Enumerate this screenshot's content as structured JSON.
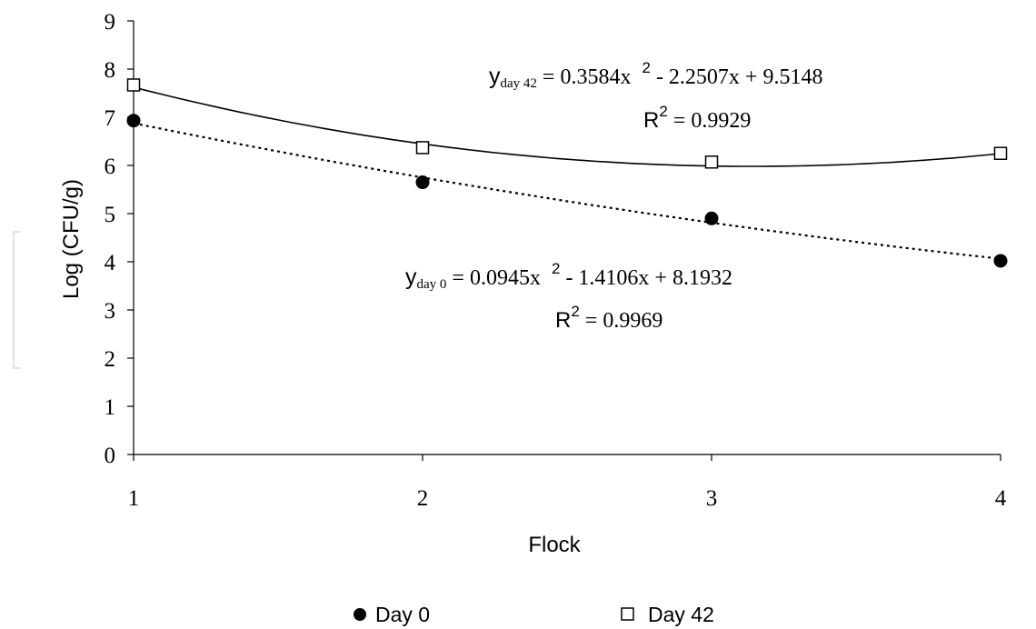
{
  "chart_data": {
    "type": "scatter",
    "xlabel": "Flock",
    "ylabel": "Log (CFU/g)",
    "xlim": [
      1,
      4
    ],
    "ylim": [
      0,
      9
    ],
    "x_ticks": [
      "1",
      "2",
      "3",
      "4"
    ],
    "y_ticks": [
      "0",
      "1",
      "2",
      "3",
      "4",
      "5",
      "6",
      "7",
      "8",
      "9"
    ],
    "grid": false,
    "legend_position": "bottom",
    "series": [
      {
        "name": "Day 0",
        "marker": "filled-circle",
        "trendline_style": "dotted",
        "color": "#000000",
        "x": [
          1,
          2,
          3,
          4
        ],
        "y": [
          6.93,
          5.65,
          4.9,
          4.02
        ],
        "fit": {
          "a": 0.0945,
          "b": -1.4106,
          "c": 8.1932
        }
      },
      {
        "name": "Day 42",
        "marker": "open-square",
        "trendline_style": "solid",
        "color": "#000000",
        "x": [
          1,
          2,
          3,
          4
        ],
        "y": [
          7.67,
          6.37,
          6.07,
          6.25
        ],
        "fit": {
          "a": 0.3584,
          "b": -2.2507,
          "c": 9.5148
        }
      }
    ],
    "annotations": {
      "day42_eq_y": "y",
      "day42_eq_sub": "day 42",
      "day42_eq_part1": " = 0.3584x",
      "day42_eq_sup": "2",
      "day42_eq_part2": " - 2.2507x + 9.5148",
      "day42_r2_label": "R",
      "day42_r2_sup": "2",
      "day42_r2_value": " = 0.9929",
      "day0_eq_y": "y",
      "day0_eq_sub": "day 0",
      "day0_eq_part1": " = 0.0945x",
      "day0_eq_sup": "2",
      "day0_eq_part2": " - 1.4106x + 8.1932",
      "day0_r2_label": "R",
      "day0_r2_sup": "2",
      "day0_r2_value": " = 0.9969"
    }
  }
}
